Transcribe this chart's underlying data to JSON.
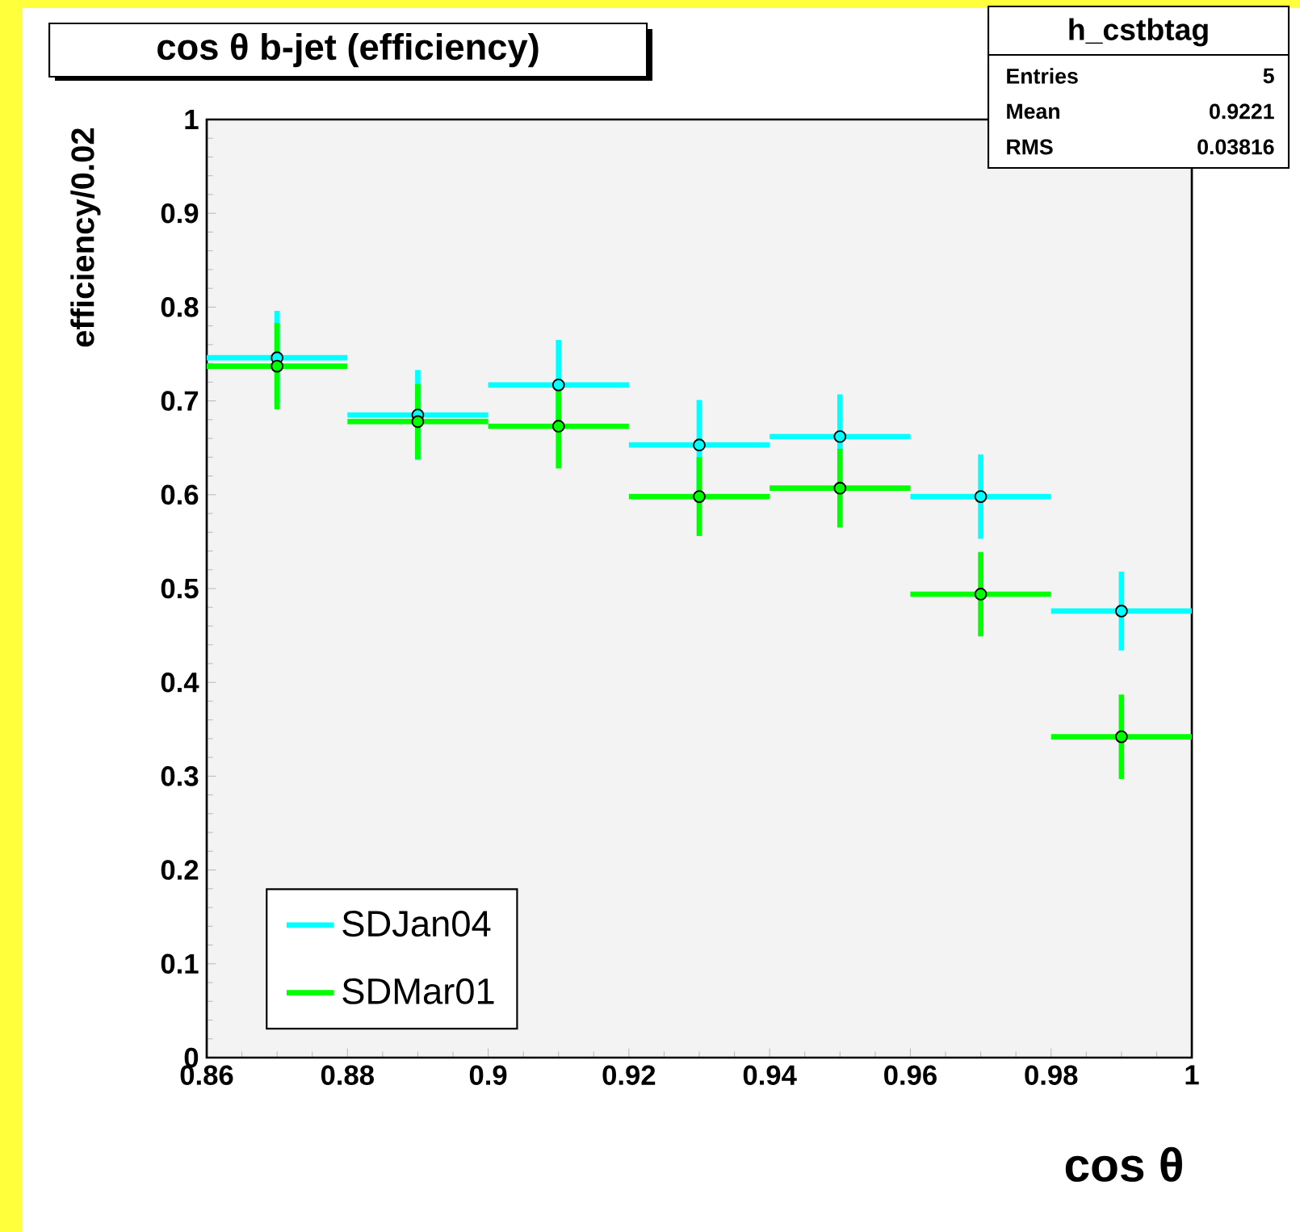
{
  "chart_data": {
    "type": "scatter",
    "title": "cos θ b-jet (efficiency)",
    "xlabel": "cos θ",
    "ylabel": "efficiency/0.02",
    "x": [
      0.87,
      0.89,
      0.91,
      0.93,
      0.95,
      0.97,
      0.99
    ],
    "series": [
      {
        "name": "SDJan04",
        "color": "#00ffff",
        "values": [
          0.746,
          0.685,
          0.717,
          0.653,
          0.662,
          0.598,
          0.476
        ],
        "errors": [
          0.05,
          0.048,
          0.048,
          0.048,
          0.045,
          0.045,
          0.042
        ],
        "xerrors": [
          0.01,
          0.01,
          0.01,
          0.01,
          0.01,
          0.01,
          0.01
        ]
      },
      {
        "name": "SDMar01",
        "color": "#00ff00",
        "values": [
          0.737,
          0.678,
          0.673,
          0.598,
          0.607,
          0.494,
          0.342
        ],
        "errors": [
          0.046,
          0.04,
          0.045,
          0.042,
          0.042,
          0.045,
          0.045
        ],
        "xerrors": [
          0.01,
          0.01,
          0.01,
          0.01,
          0.01,
          0.01,
          0.01
        ]
      }
    ],
    "xlim": [
      0.86,
      1
    ],
    "xticks": [
      0.86,
      0.88,
      {
        "value": 0.9,
        "label": "0.9"
      },
      0.92,
      0.94,
      0.96,
      0.98,
      1
    ],
    "ylim": [
      0,
      1
    ],
    "yticks": [
      0,
      0.1,
      0.2,
      0.3,
      0.4,
      0.5,
      0.6,
      0.7,
      0.8,
      0.9,
      1
    ],
    "marker": "circle",
    "legend": "bottom left",
    "annotations": [
      "h_cstbtag",
      "Entries",
      "5",
      "Mean",
      "0.9221",
      "RMS",
      "0.03816"
    ]
  }
}
